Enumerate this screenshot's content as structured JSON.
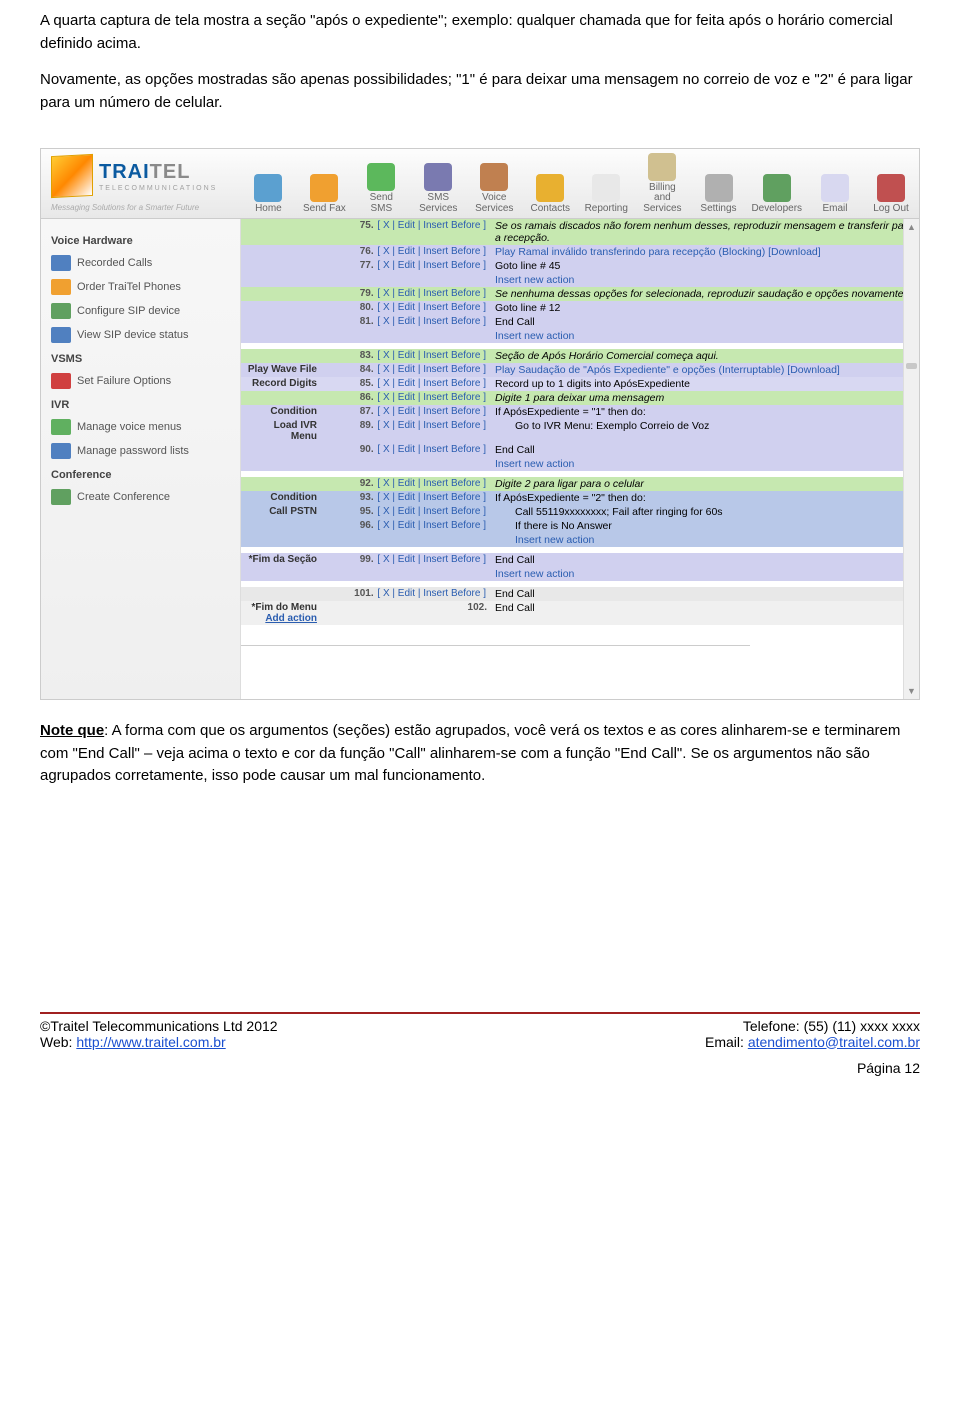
{
  "doc": {
    "para1": "A quarta captura de tela mostra a seção \"após o expediente\"; exemplo: qualquer chamada que for feita após o horário comercial definido acima.",
    "para2": "Novamente, as opções mostradas são apenas possibilidades; \"1\" é para deixar uma mensagem no correio de voz e \"2\" é para ligar para um número de celular.",
    "note_head": "Note que",
    "note_body": ": A forma com que os argumentos (seções) estão agrupados, você verá os textos e as cores alinharem-se e terminarem com \"End Call\" – veja acima o texto e cor da função \"Call\" alinharem-se com a função \"End Call\". Se os argumentos não são agrupados corretamente, isso pode causar um mal funcionamento."
  },
  "brand": {
    "name1": "TRAI",
    "name2": "TEL",
    "sub": "TELECOMMUNICATIONS",
    "tagline": "Messaging Solutions for a Smarter Future"
  },
  "nav": [
    {
      "label": "Home",
      "color": "#5ba0d0"
    },
    {
      "label": "Send Fax",
      "color": "#f0a030"
    },
    {
      "label": "Send SMS",
      "color": "#5cb85c"
    },
    {
      "label": "SMS\nServices",
      "color": "#7a7ab0"
    },
    {
      "label": "Voice\nServices",
      "color": "#c08050"
    },
    {
      "label": "Contacts",
      "color": "#e8b030"
    },
    {
      "label": "Reporting",
      "color": "#e8e8e8"
    },
    {
      "label": "Billing and\nServices",
      "color": "#d0c090"
    },
    {
      "label": "Settings",
      "color": "#b0b0b0"
    },
    {
      "label": "Developers",
      "color": "#60a060"
    },
    {
      "label": "Email",
      "color": "#d8d8f0"
    },
    {
      "label": "Log Out",
      "color": "#c05050"
    }
  ],
  "sidebar": {
    "voice_hw": "Voice Hardware",
    "voice_items": [
      {
        "label": "Recorded Calls",
        "c": "#5080c0"
      },
      {
        "label": "Order TraiTel Phones",
        "c": "#f0a030"
      },
      {
        "label": "Configure SIP device",
        "c": "#60a060"
      },
      {
        "label": "View SIP device status",
        "c": "#5080c0"
      }
    ],
    "vsms": "VSMS",
    "vsms_items": [
      {
        "label": "Set Failure Options",
        "c": "#d04040"
      }
    ],
    "ivr": "IVR",
    "ivr_items": [
      {
        "label": "Manage voice menus",
        "c": "#60b060"
      },
      {
        "label": "Manage password lists",
        "c": "#5080c0"
      }
    ],
    "conf": "Conference",
    "conf_items": [
      {
        "label": "Create Conference",
        "c": "#60a060"
      }
    ]
  },
  "labels": {
    "play_wave": "Play Wave File",
    "record_digits": "Record Digits",
    "condition": "Condition",
    "load_ivr": "Load IVR Menu",
    "call_pstn": "Call PSTN",
    "fim_secao": "*Fim da Seção",
    "fim_menu": "*Fim do Menu",
    "add_action": "Add action"
  },
  "rows": [
    {
      "n": "75.",
      "cls": "row-green",
      "act": "[ X | Edit | Insert Before ]",
      "d": "Se os ramais discados não forem nenhum desses, reproduzir mensagem e transferir para a recepção.",
      "ital": true
    },
    {
      "n": "76.",
      "cls": "row-lav",
      "act": "[ X | Edit | Insert Before ]",
      "d": "Play Ramal inválido transferindo para recepção (Blocking) [Download]",
      "link": true
    },
    {
      "n": "77.",
      "cls": "row-lav",
      "act": "[ X | Edit | Insert Before ]",
      "d": "Goto line # 45"
    },
    {
      "n": "",
      "cls": "row-lav",
      "act": "",
      "d": "Insert new action",
      "link": true
    },
    {
      "n": "79.",
      "cls": "row-green",
      "act": "[ X | Edit | Insert Before ]",
      "d": "Se nenhuma dessas opções for selecionada, reproduzir saudação e opções novamente",
      "ital": true
    },
    {
      "n": "80.",
      "cls": "row-lav",
      "act": "[ X | Edit | Insert Before ]",
      "d": "Goto line # 12"
    },
    {
      "n": "81.",
      "cls": "row-lav",
      "act": "[ X | Edit | Insert Before ]",
      "d": "End Call"
    },
    {
      "n": "",
      "cls": "row-lav",
      "act": "",
      "d": "Insert new action",
      "link": true
    },
    {
      "n": "83.",
      "cls": "row-green",
      "lbl": "",
      "act": "[ X | Edit | Insert Before ]",
      "d": "Seção de Após Horário Comercial começa aqui.",
      "ital": true
    },
    {
      "n": "84.",
      "cls": "row-lav",
      "lbl": "play_wave",
      "act": "[ X | Edit | Insert Before ]",
      "d": "Play Saudação de \"Após Expediente\" e opções (Interruptable) [Download]",
      "link": true
    },
    {
      "n": "85.",
      "cls": "row-lav-alt",
      "lbl": "record_digits",
      "act": "[ X | Edit | Insert Before ]",
      "d": "Record up to 1 digits into ApósExpediente"
    },
    {
      "n": "86.",
      "cls": "row-green",
      "lbl": "",
      "act": "[ X | Edit | Insert Before ]",
      "d": "Digite 1 para deixar uma mensagem",
      "ital": true
    },
    {
      "n": "87.",
      "cls": "row-lav",
      "lbl": "condition",
      "act": "[ X | Edit | Insert Before ]",
      "d": "If ApósExpediente = \"1\" then do:"
    },
    {
      "n": "89.",
      "cls": "row-lav",
      "lbl": "load_ivr",
      "act": "[ X | Edit | Insert Before ]",
      "d": "Go to IVR Menu: Exemplo Correio de Voz",
      "indent": true
    },
    {
      "n": "90.",
      "cls": "row-lav",
      "lbl": "",
      "act": "[ X | Edit | Insert Before ]",
      "d": "End Call"
    },
    {
      "n": "",
      "cls": "row-lav",
      "act": "",
      "d": "Insert new action",
      "link": true
    },
    {
      "n": "92.",
      "cls": "row-green",
      "act": "[ X | Edit | Insert Before ]",
      "d": "Digite 2 para ligar para o celular",
      "ital": true
    },
    {
      "n": "93.",
      "cls": "row-blue",
      "lbl": "condition",
      "act": "[ X | Edit | Insert Before ]",
      "d": "If ApósExpediente = \"2\" then do:"
    },
    {
      "n": "95.",
      "cls": "row-blue",
      "lbl": "call_pstn",
      "act": "[ X | Edit | Insert Before ]",
      "d": "Call 55119xxxxxxxx; Fail after ringing for 60s",
      "indent": true
    },
    {
      "n": "96.",
      "cls": "row-blue",
      "act": "[ X | Edit | Insert Before ]",
      "d": "If there is No Answer",
      "indent": true
    },
    {
      "n": "",
      "cls": "row-blue",
      "act": "",
      "d": "Insert new action",
      "link": true,
      "indent": true
    },
    {
      "n": "99.",
      "cls": "row-lav",
      "lbl": "fim_secao",
      "act": "[ X | Edit | Insert Before ]",
      "d": "End Call"
    },
    {
      "n": "",
      "cls": "row-lav",
      "act": "",
      "d": "Insert new action",
      "link": true
    },
    {
      "n": "101.",
      "cls": "row-grey",
      "act": "[ X | Edit | Insert Before ]",
      "d": "End Call"
    },
    {
      "n": "102.",
      "cls": "row-grey-alt",
      "lbl": "fim_menu",
      "addaction": true,
      "act": "",
      "d": "End Call"
    }
  ],
  "footer": {
    "left1": "©Traitel Telecommunications Ltd 2012",
    "left2_pre": "Web: ",
    "left2_link": "http://www.traitel.com.br",
    "right1": "Telefone: (55) (11) xxxx xxxx",
    "right2_pre": "Email: ",
    "right2_link": "atendimento@traitel.com.br",
    "page": "Página 12"
  }
}
